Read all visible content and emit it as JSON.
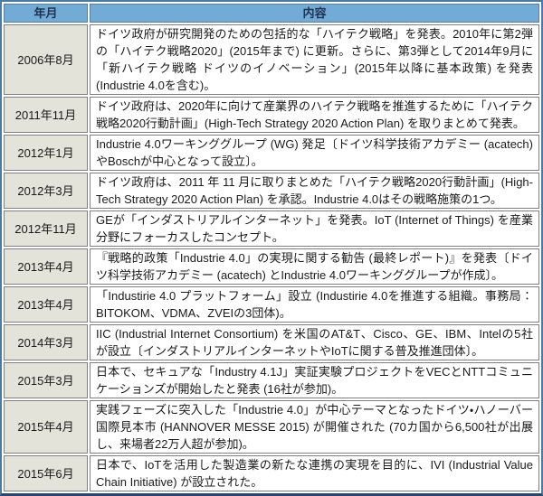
{
  "colors": {
    "header_bg": "#72ABD6",
    "header_text": "#1F3350",
    "date_cell_bg": "#E3E3DA",
    "cell_border": "#7F7F7F",
    "outer_border": "#4A7BA6",
    "bottom_border": "#27476B",
    "body_text": "#1A1A1A"
  },
  "table": {
    "columns": [
      {
        "label": "年月"
      },
      {
        "label": "内容"
      }
    ],
    "rows": [
      {
        "date": "2006年8月",
        "content": "ドイツ政府が研究開発のための包括的な「ハイテク戦略」を発表。2010年に第2弾の「ハイテク戦略2020」(2015年まで) に更新。さらに、第3弾として2014年9月に「新ハイテク戦略 ドイツのイノベーション」(2015年以降に基本政策) を発表 (Industrie 4.0を含む)。"
      },
      {
        "date": "2011年11月",
        "content": "ドイツ政府は、2020年に向けて産業界のハイテク戦略を推進するために「ハイテク戦略2020行動計画」(High-Tech Strategy 2020 Action Plan) を取りまとめて発表。"
      },
      {
        "date": "2012年1月",
        "content": "Industrie 4.0ワーキンググループ (WG) 発足〔ドイツ科学技術アカデミー (acatech) やBoschが中心となって設立〕。"
      },
      {
        "date": "2012年3月",
        "content": "ドイツ政府は、2011 年 11 月に取りまとめた「ハイテク戦略2020行動計画」(High-Tech Strategy 2020 Action Plan) を承認。Industrie 4.0はその戦略施策の1つ。"
      },
      {
        "date": "2012年11月",
        "content": "GEが「インダストリアルインターネット」を発表。IoT (Internet of Things) を産業分野にフォーカスしたコンセプト。"
      },
      {
        "date": "2013年4月",
        "content": "『戦略的政策「Industrie 4.0」の実現に関する勧告 (最終レポート)』を発表〔ドイツ科学技術アカデミー (acatech) とIndustrie 4.0ワーキンググループが作成〕。"
      },
      {
        "date": "2013年4月",
        "content": "「Industirie 4.0 プラットフォーム」設立 (Industirie 4.0を推進する組織。事務局：BITOKOM、VDMA、ZVEIの3団体)。"
      },
      {
        "date": "2014年3月",
        "content": "IIC (Industrial Internet Consortium) を米国のAT&T、Cisco、GE、IBM、Intelの5社が設立〔インダストリアルインターネットやIoTに関する普及推進団体〕。"
      },
      {
        "date": "2015年3月",
        "content": "日本で、セキュアな「Industry 4.1J」実証実験プロジェクトをVECとNTTコミュニケーションズが開始したと発表 (16社が参加)。"
      },
      {
        "date": "2015年4月",
        "content": "実践フェーズに突入した「Industrie 4.0」が中心テーマとなったドイツ・ハノーバー国際見本市 (HANNOVER MESSE 2015) が開催された (70カ国から6,500社が出展し、来場者22万人超が参加)。"
      },
      {
        "date": "2015年6月",
        "content": "日本で、IoTを活用した製造業の新たな連携の実現を目的に、IVI (Industrial Value Chain Initiative) が設立された。"
      }
    ]
  }
}
